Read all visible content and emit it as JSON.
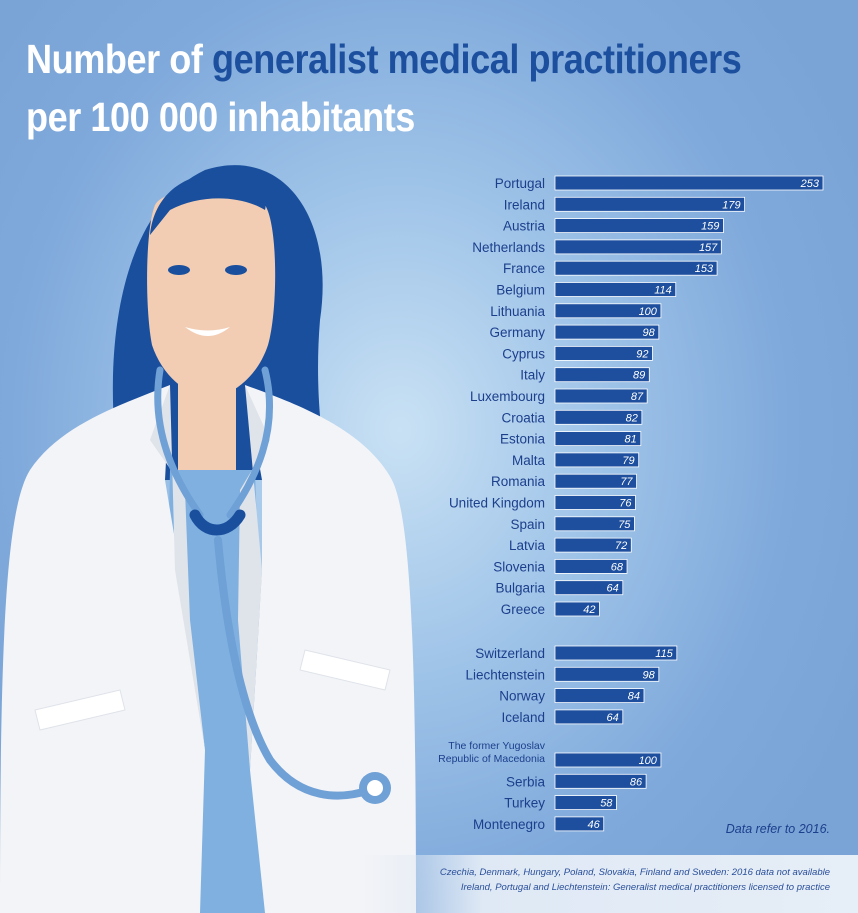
{
  "header": {
    "title_part1": "Number of ",
    "title_highlight": "generalist medical practitioners",
    "title_line2": "per 100 000 inhabitants"
  },
  "colors": {
    "bar": "#1d4f9e",
    "title_highlight": "#1c4f9e",
    "label": "#1c3f8c"
  },
  "chart_data": {
    "type": "bar",
    "orientation": "horizontal",
    "xlim": [
      0,
      253
    ],
    "grid": false,
    "groups": [
      {
        "categories": [
          "Portugal",
          "Ireland",
          "Austria",
          "Netherlands",
          "France",
          "Belgium",
          "Lithuania",
          "Germany",
          "Cyprus",
          "Italy",
          "Luxembourg",
          "Croatia",
          "Estonia",
          "Malta",
          "Romania",
          "United Kingdom",
          "Spain",
          "Latvia",
          "Slovenia",
          "Bulgaria",
          "Greece"
        ],
        "values": [
          253,
          179,
          159,
          157,
          153,
          114,
          100,
          98,
          92,
          89,
          87,
          82,
          81,
          79,
          77,
          76,
          75,
          72,
          68,
          64,
          42
        ]
      },
      {
        "categories": [
          "Switzerland",
          "Liechtenstein",
          "Norway",
          "Iceland"
        ],
        "values": [
          115,
          98,
          84,
          64
        ]
      },
      {
        "categories": [
          "The former Yugoslav Republic of Macedonia",
          "Serbia",
          "Turkey",
          "Montenegro"
        ],
        "label_lines": {
          "The former Yugoslav Republic of Macedonia": [
            "The former Yugoslav",
            "Republic of Macedonia"
          ]
        },
        "values": [
          100,
          86,
          58,
          46
        ]
      }
    ]
  },
  "note": "Data refer to 2016.",
  "footer": {
    "line1": "Czechia, Denmark, Hungary, Poland, Slovakia, Finland and Sweden: 2016 data not available",
    "line2": "Ireland, Portugal and Liechtenstein: Generalist medical practitioners licensed to practice"
  }
}
